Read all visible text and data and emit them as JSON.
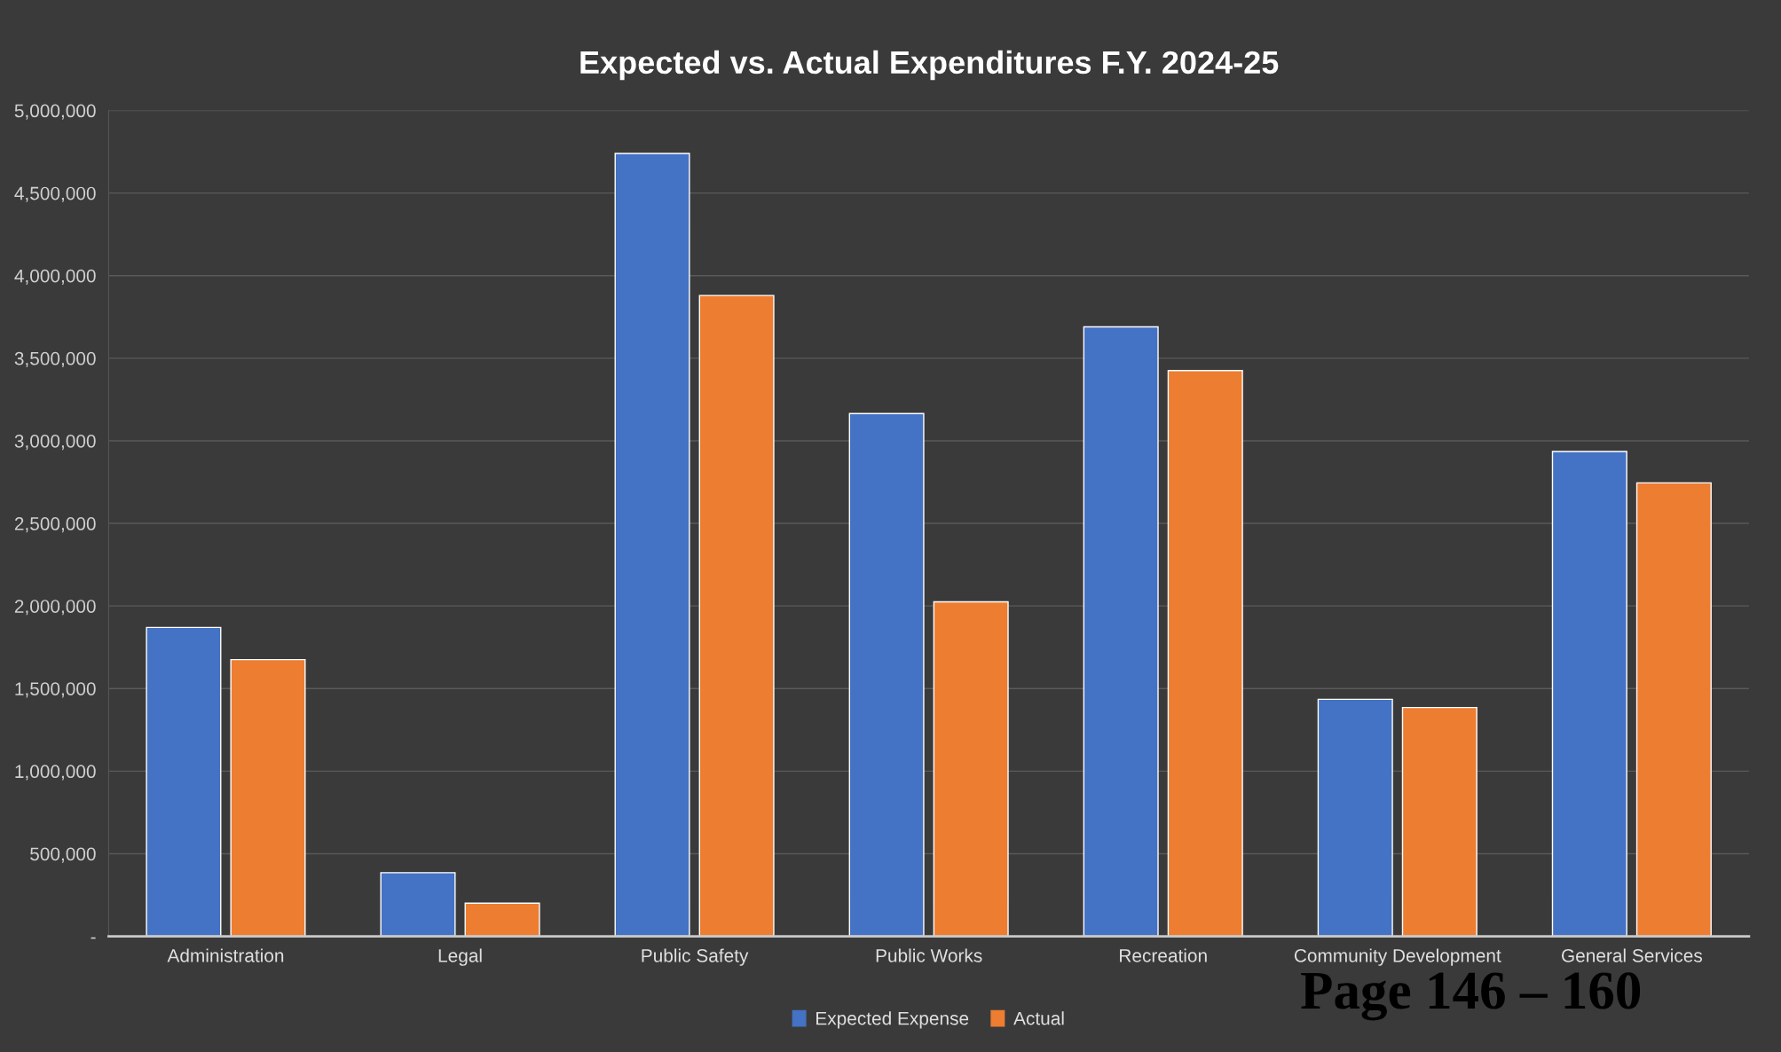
{
  "chart_data": {
    "type": "bar",
    "title": "Expected vs. Actual Expenditures F.Y. 2024-25",
    "categories": [
      "Administration",
      "Legal",
      "Public Safety",
      "Public Works",
      "Recreation",
      "Community Development",
      "General Services"
    ],
    "series": [
      {
        "name": "Expected Expense",
        "color": "#4472c4",
        "values": [
          1870000,
          385000,
          4740000,
          3165000,
          3690000,
          1435000,
          2935000
        ]
      },
      {
        "name": "Actual",
        "color": "#ed7d31",
        "values": [
          1675000,
          200000,
          3880000,
          2025000,
          3425000,
          1385000,
          2745000
        ]
      }
    ],
    "ylim": [
      0,
      5000000
    ],
    "yticks": [
      {
        "value": 0,
        "label": "-"
      },
      {
        "value": 500000,
        "label": "500,000"
      },
      {
        "value": 1000000,
        "label": "1,000,000"
      },
      {
        "value": 1500000,
        "label": "1,500,000"
      },
      {
        "value": 2000000,
        "label": "2,000,000"
      },
      {
        "value": 2500000,
        "label": "2,500,000"
      },
      {
        "value": 3000000,
        "label": "3,000,000"
      },
      {
        "value": 3500000,
        "label": "3,500,000"
      },
      {
        "value": 4000000,
        "label": "4,000,000"
      },
      {
        "value": 4500000,
        "label": "4,500,000"
      },
      {
        "value": 5000000,
        "label": "5,000,000"
      }
    ],
    "grid": "y",
    "legend": "bottom",
    "annotations": [
      "Page 146 – 160"
    ]
  }
}
